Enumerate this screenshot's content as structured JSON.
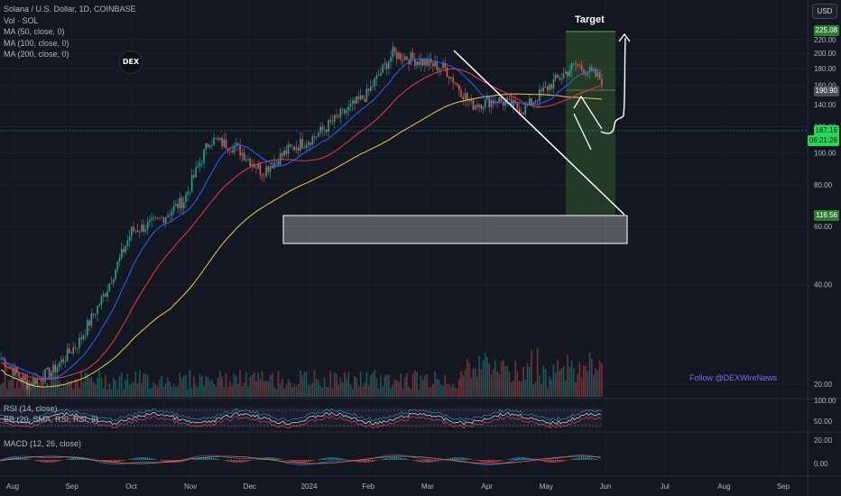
{
  "legend": {
    "symbol": "Solana / U.S. Dollar, 1D, COINBASE",
    "vol": "Vol · SOL",
    "ma50": "MA (50, close, 0)",
    "ma100": "MA (100, close, 0)",
    "ma200": "MA (200, close, 0)"
  },
  "currency": "USD",
  "logo_text": "DEX",
  "annotation_target": "Target",
  "watermark": "Follow @DEXWireNews",
  "rsi_label": "RSI (14, close)",
  "bb_label": "BB (20, SMA, RSI, RSI, 2)",
  "macd_label": "MACD (12, 26, close)",
  "price_tags": {
    "top": "225.08",
    "mid": "190.90",
    "current": "167.16",
    "countdown": "06:21:28",
    "low": "116.56"
  },
  "colors": {
    "bull": "#26a69a",
    "bear": "#ef5350",
    "ma50": "#2962ff",
    "ma100": "#f23645",
    "ma200": "#f2c94c",
    "background": "#131722"
  },
  "chart_data": {
    "type": "candlestick",
    "title": "Solana / U.S. Dollar, 1D, COINBASE",
    "x_ticks": [
      "Aug",
      "Sep",
      "Oct",
      "Nov",
      "Dec",
      "2024",
      "Feb",
      "Mar",
      "Apr",
      "May",
      "Jun",
      "Jul",
      "Aug",
      "Sep"
    ],
    "y_ticks": [
      20.0,
      40.0,
      60.0,
      80.0,
      100.0,
      120.0,
      140.0,
      160.0,
      180.0,
      200.0,
      220.0
    ],
    "ylim": [
      15,
      228
    ],
    "price_path": [
      {
        "date": "Aug",
        "close": 24
      },
      {
        "date": "Sep",
        "close": 20
      },
      {
        "date": "Oct",
        "close": 22
      },
      {
        "date": "Oct-mid",
        "close": 27
      },
      {
        "date": "Nov",
        "close": 38
      },
      {
        "date": "Nov-mid",
        "close": 58
      },
      {
        "date": "Dec",
        "close": 62
      },
      {
        "date": "Dec-mid",
        "close": 72
      },
      {
        "date": "Dec-late",
        "close": 110
      },
      {
        "date": "2024",
        "close": 104
      },
      {
        "date": "Jan-mid",
        "close": 88
      },
      {
        "date": "Feb",
        "close": 102
      },
      {
        "date": "Feb-mid",
        "close": 112
      },
      {
        "date": "Feb-late",
        "close": 130
      },
      {
        "date": "Mar",
        "close": 150
      },
      {
        "date": "Mar-mid",
        "close": 200
      },
      {
        "date": "Mar-late",
        "close": 190
      },
      {
        "date": "Apr",
        "close": 180
      },
      {
        "date": "Apr-mid",
        "close": 140
      },
      {
        "date": "Apr-late",
        "close": 145
      },
      {
        "date": "May",
        "close": 135
      },
      {
        "date": "May-mid",
        "close": 160
      },
      {
        "date": "May-late",
        "close": 185
      },
      {
        "date": "Jun",
        "close": 167
      }
    ],
    "moving_averages": [
      {
        "name": "MA (50, close, 0)",
        "color": "#2962ff"
      },
      {
        "name": "MA (100, close, 0)",
        "color": "#f23645"
      },
      {
        "name": "MA (200, close, 0)",
        "color": "#f2c94c"
      }
    ],
    "annotations": {
      "target_zone": {
        "from_price": 116.56,
        "to_price": 225.08,
        "label": "Target"
      },
      "support_zone": {
        "from_price": 100,
        "to_price": 115
      },
      "intermediate_target": 190.9,
      "current_price": 167.16
    },
    "rsi_ticks": [
      100.0,
      50.0
    ],
    "macd_ticks": [
      20.0,
      0.0
    ]
  }
}
